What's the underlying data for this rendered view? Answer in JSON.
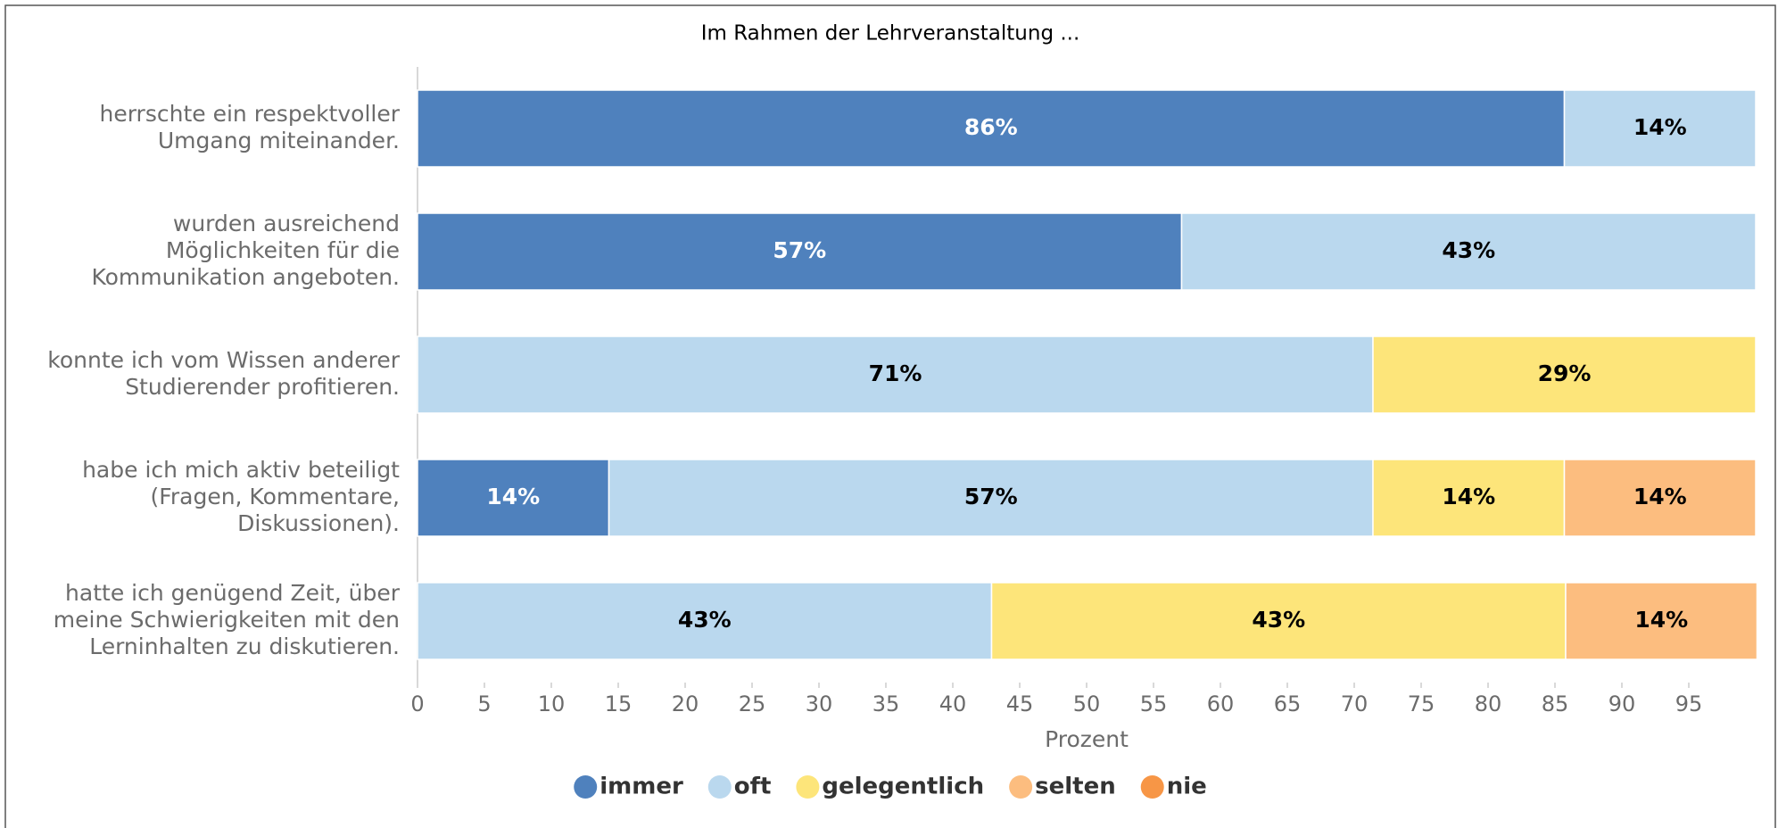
{
  "chart_data": {
    "type": "stacked_barh",
    "title": "Im Rahmen der Lehrveranstaltung ...",
    "categories": [
      [
        "herrschte ein respektvoller",
        "Umgang miteinander."
      ],
      [
        "wurden ausreichend",
        "Möglichkeiten für die",
        "Kommunikation angeboten."
      ],
      [
        "konnte ich vom Wissen anderer",
        "Studierender profitieren."
      ],
      [
        "habe ich mich aktiv beteiligt",
        "(Fragen, Kommentare,",
        "Diskussionen)."
      ],
      [
        "hatte ich genügend Zeit, über",
        "meine Schwierigkeiten mit den",
        "Lerninhalten zu diskutieren."
      ]
    ],
    "series": [
      {
        "name": "immer",
        "color": "#4f81bd",
        "values": [
          85.7,
          57.1,
          null,
          14.3,
          null
        ],
        "value_labels": [
          "86%",
          "57%",
          null,
          "14%",
          null
        ]
      },
      {
        "name": "oft",
        "color": "#bad8ee",
        "values": [
          14.3,
          42.9,
          71.4,
          57.1,
          42.9
        ],
        "value_labels": [
          "14%",
          "43%",
          "71%",
          "57%",
          "43%"
        ]
      },
      {
        "name": "gelegentlich",
        "color": "#fde57a",
        "values": [
          null,
          null,
          28.6,
          14.3,
          42.9
        ],
        "value_labels": [
          null,
          null,
          "29%",
          "14%",
          "43%"
        ]
      },
      {
        "name": "selten",
        "color": "#fcbd7f",
        "values": [
          null,
          null,
          null,
          14.3,
          14.3
        ],
        "value_labels": [
          null,
          null,
          null,
          "14%",
          "14%"
        ]
      },
      {
        "name": "nie",
        "color": "#f79646",
        "values": [
          null,
          null,
          null,
          null,
          null
        ],
        "value_labels": [
          null,
          null,
          null,
          null,
          null
        ]
      }
    ],
    "xlabel": "Prozent",
    "xlim": [
      0,
      100
    ],
    "xticks": [
      0,
      5,
      10,
      15,
      20,
      25,
      30,
      35,
      40,
      45,
      50,
      55,
      60,
      65,
      70,
      75,
      80,
      85,
      90,
      95
    ],
    "legend": "bottom"
  }
}
